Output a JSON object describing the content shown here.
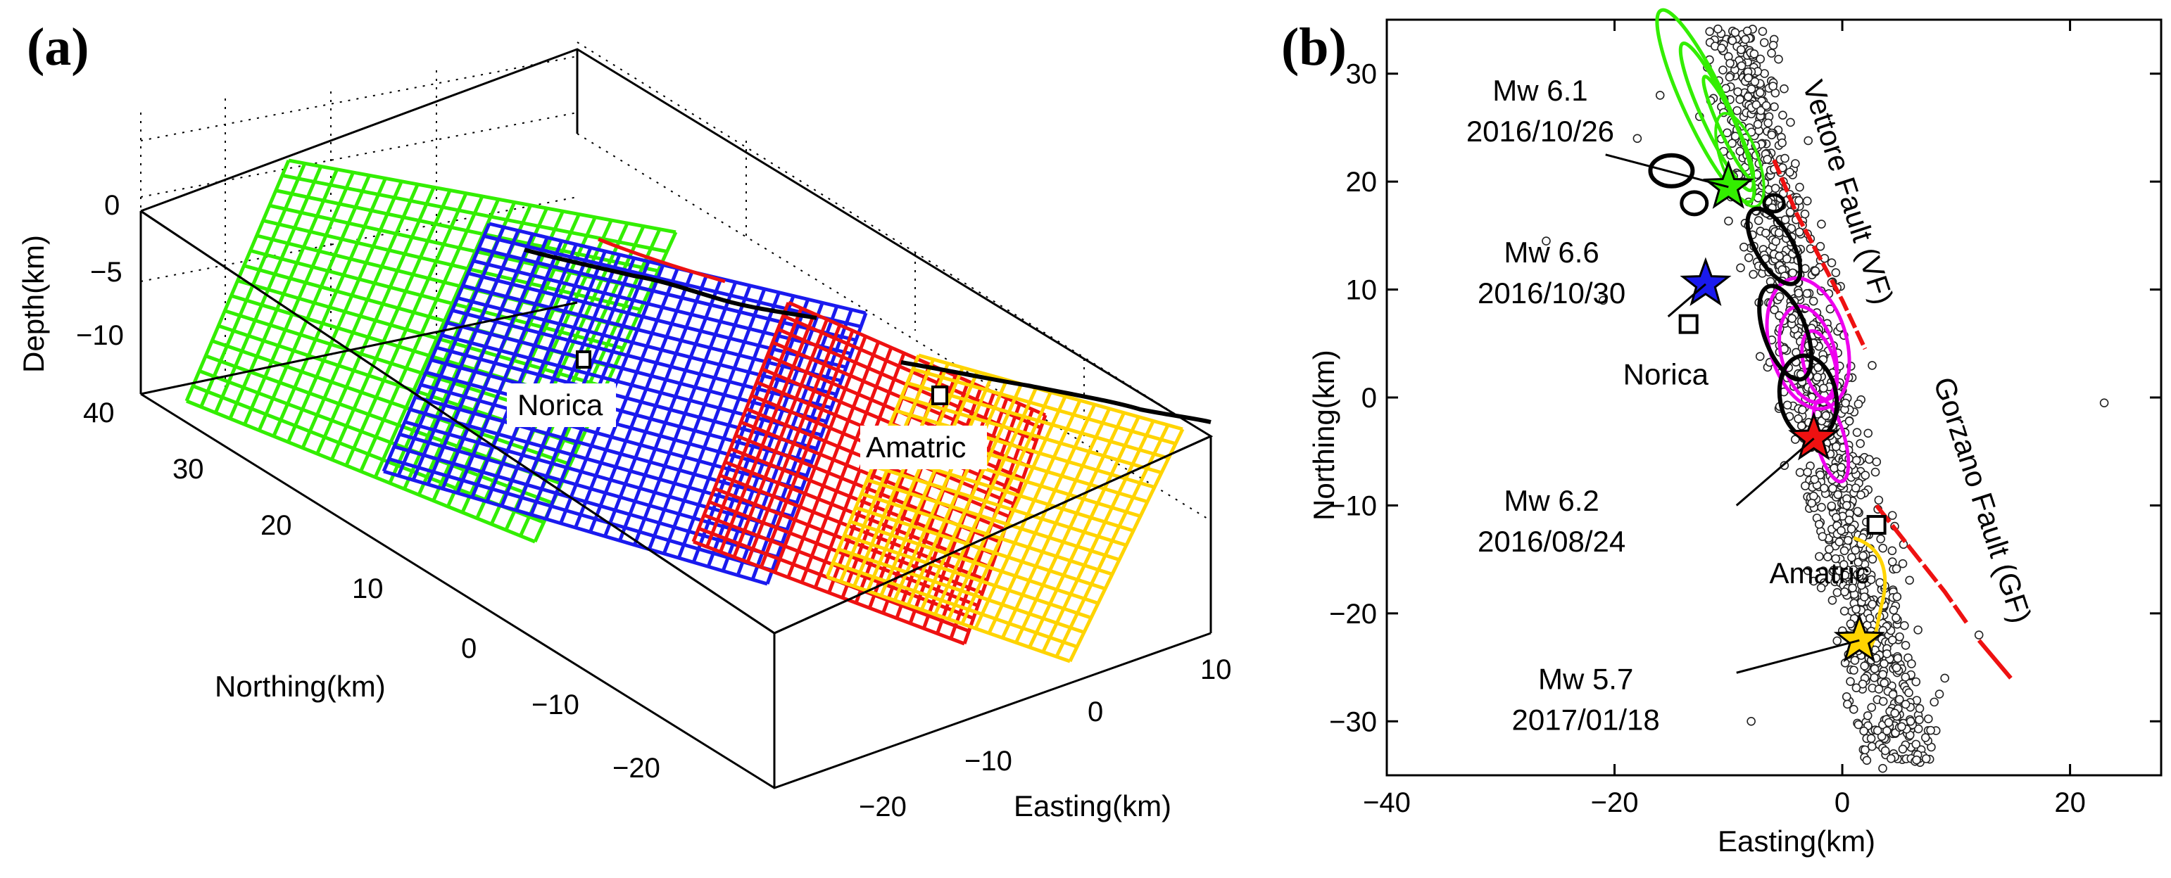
{
  "panel_a": {
    "label": "(a)",
    "x_axis_label": "Northing(km)",
    "y_axis_label": "Easting(km)",
    "z_axis_label": "Depth(km)",
    "northing_ticks": [
      "30",
      "20",
      "10",
      "0",
      "−10",
      "−20"
    ],
    "easting_ticks": [
      "10",
      "0",
      "−10",
      "−20"
    ],
    "depth_ticks": [
      "0",
      "−5",
      "−10"
    ],
    "box_corner_label": "40",
    "towns": [
      "Norica",
      "Amatric"
    ],
    "fault_plane_colors": [
      "#33ee00",
      "#1a1aee",
      "#ee1111",
      "#ffd400"
    ]
  },
  "panel_b": {
    "label": "(b)",
    "chart_data": {
      "type": "scatter",
      "xlabel": "Easting(km)",
      "ylabel": "Northing(km)",
      "xlim": [
        -40,
        28
      ],
      "ylim": [
        -35,
        35
      ],
      "x_ticks": [
        "−40",
        "−20",
        "0",
        "20"
      ],
      "y_ticks": [
        "30",
        "20",
        "10",
        "0",
        "−10",
        "−20",
        "−30"
      ],
      "events": [
        {
          "magnitude": "Mw 6.1",
          "date": "2016/10/26",
          "x": -10,
          "y": 19.5,
          "color": "#33ee00"
        },
        {
          "magnitude": "Mw 6.6",
          "date": "2016/10/30",
          "x": -12,
          "y": 10.5,
          "color": "#1a1aee"
        },
        {
          "magnitude": "Mw 6.2",
          "date": "2016/08/24",
          "x": -2.5,
          "y": -3.8,
          "color": "#ee1111"
        },
        {
          "magnitude": "Mw 5.7",
          "date": "2017/01/18",
          "x": 1.5,
          "y": -22.5,
          "color": "#ffd400"
        }
      ],
      "towns": [
        {
          "name": "Norica",
          "x": -13.5,
          "y": 6.8
        },
        {
          "name": "Amatric",
          "x": 3,
          "y": -11.8
        }
      ],
      "faults": [
        {
          "name": "Vettore Fault (VF)",
          "color": "#ee1111"
        },
        {
          "name": "Gorzano Fault (GF)",
          "color": "#ee1111"
        }
      ],
      "aftershock_marker": "open-circle"
    }
  }
}
